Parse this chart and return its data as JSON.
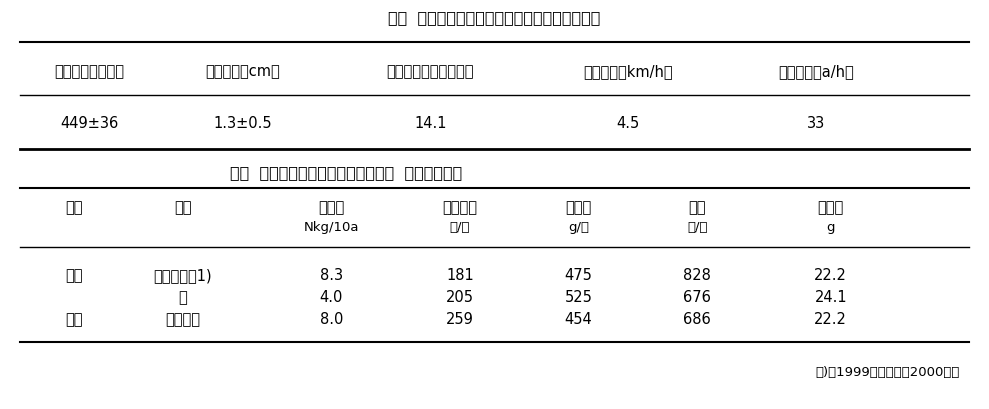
{
  "title1": "表１  圃場試験での播種量、播種精度と作業能率",
  "title2": "表２  不耕起直播水稲の苗立数と収量  （現地実証）",
  "footnote": "１)は1999年度、他は2000年度",
  "table1_headers": [
    "播種量（粒／㎡）",
    "播種深さ（cm）",
    "地表面露出割合（％）",
    "作業速度（km/h）",
    "作業能率（a/h）"
  ],
  "table1_data": [
    [
      "449±36",
      "1.3±0.5",
      "14.1",
      "4.5",
      "33"
    ]
  ],
  "table2_headers_line1": [
    "場所",
    "品種",
    "施肥量",
    "苗立ち数",
    "精玄米",
    "穂数",
    "千粒重"
  ],
  "table2_headers_line2": [
    "",
    "",
    "Nkg/10a",
    "本/㎡",
    "g/㎡",
    "本/㎡",
    "g"
  ],
  "table2_data": [
    [
      "峰延",
      "ほしのゆめ1)",
      "8.3",
      "181",
      "475",
      "828",
      "22.2"
    ],
    [
      "",
      "〃",
      "4.0",
      "205",
      "525",
      "676",
      "24.1"
    ],
    [
      "当麻",
      "ゆきまる",
      "8.0",
      "259",
      "454",
      "686",
      "22.2"
    ]
  ],
  "bg_color": "#ffffff",
  "text_color": "#000000",
  "font_size": 10.5,
  "title_font_size": 11.5
}
